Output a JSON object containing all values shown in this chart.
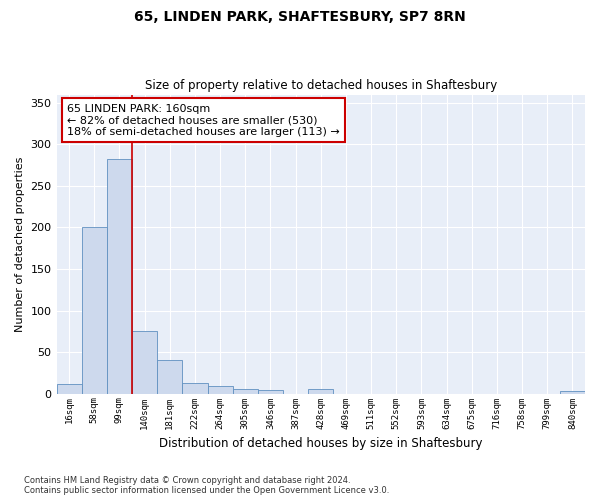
{
  "title": "65, LINDEN PARK, SHAFTESBURY, SP7 8RN",
  "subtitle": "Size of property relative to detached houses in Shaftesbury",
  "xlabel": "Distribution of detached houses by size in Shaftesbury",
  "ylabel": "Number of detached properties",
  "bin_labels": [
    "16sqm",
    "58sqm",
    "99sqm",
    "140sqm",
    "181sqm",
    "222sqm",
    "264sqm",
    "305sqm",
    "346sqm",
    "387sqm",
    "428sqm",
    "469sqm",
    "511sqm",
    "552sqm",
    "593sqm",
    "634sqm",
    "675sqm",
    "716sqm",
    "758sqm",
    "799sqm",
    "840sqm"
  ],
  "bar_values": [
    12,
    201,
    283,
    75,
    40,
    13,
    9,
    6,
    4,
    0,
    5,
    0,
    0,
    0,
    0,
    0,
    0,
    0,
    0,
    0,
    3
  ],
  "bar_color": "#cdd9ed",
  "bar_edge_color": "#6090c0",
  "vline_index": 3,
  "vline_color": "#cc0000",
  "annotation_text": "65 LINDEN PARK: 160sqm\n← 82% of detached houses are smaller (530)\n18% of semi-detached houses are larger (113) →",
  "annotation_box_color": "#ffffff",
  "annotation_box_edge": "#cc0000",
  "background_color": "#e8eef8",
  "grid_color": "#ffffff",
  "ylim": [
    0,
    360
  ],
  "yticks": [
    0,
    50,
    100,
    150,
    200,
    250,
    300,
    350
  ],
  "footer": "Contains HM Land Registry data © Crown copyright and database right 2024.\nContains public sector information licensed under the Open Government Licence v3.0."
}
